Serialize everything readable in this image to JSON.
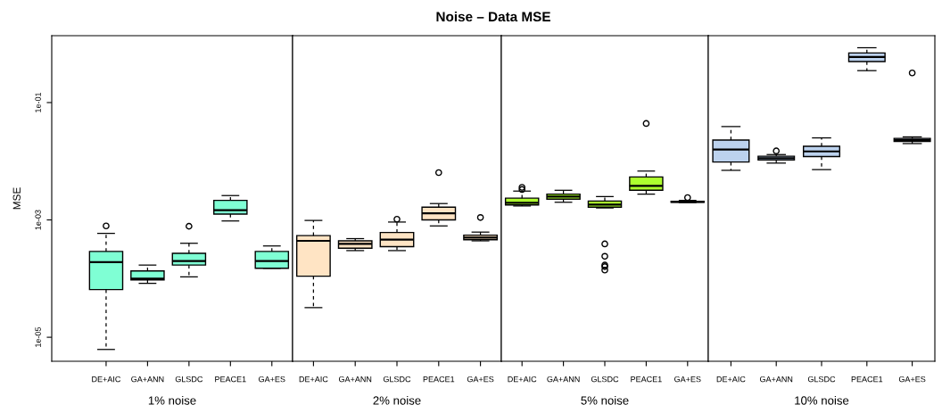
{
  "chart_data": [
    {
      "type": "box",
      "ylabel": "MSE",
      "xlabel": "1% noise",
      "categories": [
        "DE+AIC",
        "GA+ANN",
        "GLSDC",
        "PEACE1",
        "GA+ES"
      ],
      "log": "y",
      "ylim": [
        3.9e-06,
        1.38
      ],
      "yticks": [
        {
          "value": 1e-05,
          "label": "1e-05"
        },
        {
          "value": 0.001,
          "label": "1e-03"
        },
        {
          "value": 0.1,
          "label": "1e-01"
        }
      ],
      "series": [
        {
          "color": "#7fffd4",
          "boxes": [
            {
              "low": 6.2e-06,
              "q1": 6.5e-05,
              "median": 0.00019,
              "q3": 0.00029,
              "high": 0.00059,
              "outliers": [
                0.00079
              ]
            },
            {
              "low": 8.3e-05,
              "q1": 9.5e-05,
              "median": 0.0001,
              "q3": 0.000135,
              "high": 0.00017
            },
            {
              "low": 0.000107,
              "q1": 0.00017,
              "median": 0.0002,
              "q3": 0.00027,
              "high": 0.0004,
              "outliers": [
                0.00078
              ]
            },
            {
              "low": 0.00096,
              "q1": 0.00126,
              "median": 0.00147,
              "q3": 0.00215,
              "high": 0.0026
            },
            {
              "low": 0.00015,
              "q1": 0.00015,
              "median": 0.0002,
              "q3": 0.00029,
              "high": 0.00036
            }
          ]
        }
      ]
    },
    {
      "type": "box",
      "title": "Noise – Data MSE",
      "xlabel": "2% noise",
      "categories": [
        "DE+AIC",
        "GA+ANN",
        "GLSDC",
        "PEACE1",
        "GA+ES"
      ],
      "log": "y",
      "ylim": [
        3.9e-06,
        1.38
      ],
      "tick_labels": "x",
      "series": [
        {
          "color": "#ffe4c4",
          "boxes": [
            {
              "low": 3.2e-05,
              "q1": 0.00011,
              "median": 0.00044,
              "q3": 0.00054,
              "high": 0.00098
            },
            {
              "low": 0.0003,
              "q1": 0.00033,
              "median": 0.00039,
              "q3": 0.00044,
              "high": 0.00048
            },
            {
              "low": 0.0003,
              "q1": 0.00035,
              "median": 0.00046,
              "q3": 0.00061,
              "high": 0.00092,
              "outliers": [
                0.00103
              ]
            },
            {
              "low": 0.00079,
              "q1": 0.001,
              "median": 0.0013,
              "q3": 0.00165,
              "high": 0.0019,
              "outliers": [
                0.0064
              ]
            },
            {
              "low": 0.00044,
              "q1": 0.00046,
              "median": 0.0005,
              "q3": 0.00055,
              "high": 0.00062,
              "outliers": [
                0.0011
              ]
            }
          ]
        }
      ]
    },
    {
      "type": "box",
      "xlabel": "5% noise",
      "categories": [
        "DE+AIC",
        "GA+ANN",
        "GLSDC",
        "PEACE1",
        "GA+ES"
      ],
      "log": "y",
      "ylim": [
        3.9e-06,
        1.38
      ],
      "tick_labels": "x",
      "series": [
        {
          "color": "#adff2f",
          "boxes": [
            {
              "low": 0.00173,
              "q1": 0.0018,
              "median": 0.00196,
              "q3": 0.00235,
              "high": 0.0031,
              "outliers": [
                0.0036,
                0.0033
              ]
            },
            {
              "low": 0.002,
              "q1": 0.00226,
              "median": 0.0025,
              "q3": 0.00275,
              "high": 0.0032
            },
            {
              "low": 0.0016,
              "q1": 0.00165,
              "median": 0.00183,
              "q3": 0.0021,
              "high": 0.0025,
              "outliers": [
                0.00039,
                0.00024,
                0.00017,
                0.00016,
                0.00014
              ]
            },
            {
              "low": 0.00275,
              "q1": 0.0032,
              "median": 0.0038,
              "q3": 0.0054,
              "high": 0.0068,
              "outliers": [
                0.044
              ]
            },
            {
              "low": 0.00198,
              "q1": 0.002,
              "median": 0.00204,
              "q3": 0.00208,
              "high": 0.00215,
              "outliers": [
                0.0024
              ]
            }
          ]
        }
      ]
    },
    {
      "type": "box",
      "xlabel": "10% noise",
      "categories": [
        "DE+AIC",
        "GA+ANN",
        "GLSDC",
        "PEACE1",
        "GA+ES"
      ],
      "log": "y",
      "ylim": [
        3.9e-06,
        1.38
      ],
      "tick_labels": "x",
      "series": [
        {
          "color": "#bcd2ee",
          "boxes": [
            {
              "low": 0.007,
              "q1": 0.0097,
              "median": 0.0158,
              "q3": 0.023,
              "high": 0.039
            },
            {
              "low": 0.0093,
              "q1": 0.0105,
              "median": 0.0113,
              "q3": 0.0122,
              "high": 0.013,
              "outliers": [
                0.015
              ]
            },
            {
              "low": 0.0072,
              "q1": 0.012,
              "median": 0.0147,
              "q3": 0.018,
              "high": 0.025
            },
            {
              "low": 0.35,
              "q1": 0.5,
              "median": 0.6,
              "q3": 0.7,
              "high": 0.86
            },
            {
              "low": 0.02,
              "q1": 0.0217,
              "median": 0.023,
              "q3": 0.0245,
              "high": 0.026,
              "outliers": [
                0.32
              ]
            }
          ]
        }
      ]
    }
  ]
}
